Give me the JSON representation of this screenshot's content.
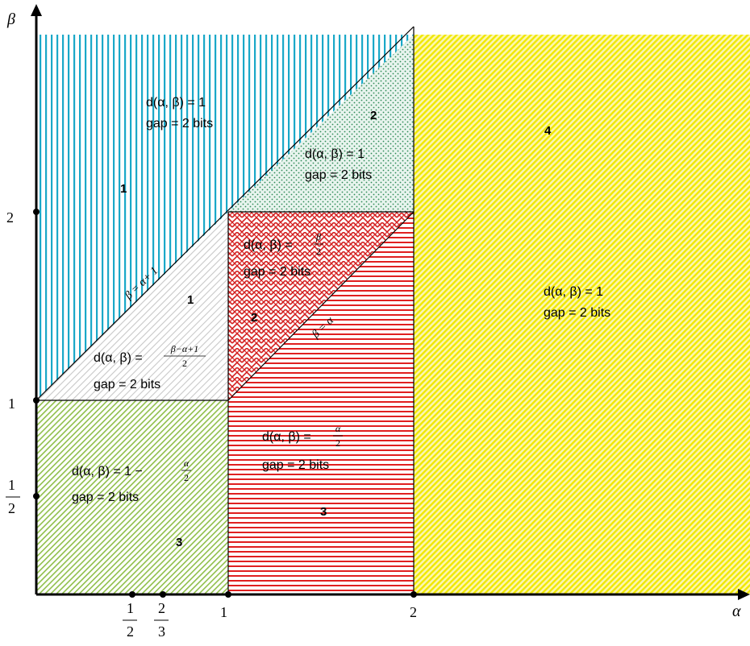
{
  "axes": {
    "x_label": "α",
    "y_label": "β",
    "x_ticks": [
      {
        "value": 0.5,
        "num": "1",
        "den": "2"
      },
      {
        "value": 0.6667,
        "num": "2",
        "den": "3"
      },
      {
        "value": 1,
        "label": "1"
      },
      {
        "value": 2,
        "label": "2"
      }
    ],
    "y_ticks": [
      {
        "value": 0.5,
        "num": "1",
        "den": "2"
      },
      {
        "value": 1,
        "label": "1"
      },
      {
        "value": 2,
        "label": "2"
      }
    ]
  },
  "lines": {
    "upper": "β = α+ 1",
    "lower": "β = α"
  },
  "regions": {
    "top_left": {
      "id": "1",
      "eq": "d(α, β) = 1",
      "gap": "gap = 2 bits",
      "color": "#1aa8c8"
    },
    "top_mid": {
      "id": "2",
      "eq": "d(α, β) = 1",
      "gap": "gap = 2 bits",
      "color": "#2e8b57"
    },
    "mid_left": {
      "id": "1",
      "eq_prefix": "d(α, β) = ",
      "frac_num": "β−α+1",
      "frac_den": "2",
      "gap": "gap = 2 bits",
      "color": "#b0b0b0"
    },
    "mid_center": {
      "id": "2",
      "eq_prefix": "d(α, β) = ",
      "frac_num": "β",
      "frac_den": "2",
      "gap": "gap = 2 bits",
      "color": "#d42020"
    },
    "bottom_left": {
      "id": "3",
      "eq_prefix": "d(α, β) = 1 − ",
      "frac_num": "α",
      "frac_den": "2",
      "gap": "gap = 2 bits",
      "color": "#7fb23a"
    },
    "bottom_center": {
      "id": "3",
      "eq_prefix": "d(α, β) = ",
      "frac_num": "α",
      "frac_den": "2",
      "gap": "gap = 2 bits",
      "color": "#e02020"
    },
    "right": {
      "id": "4",
      "eq": "d(α, β) = 1",
      "gap": "gap = 2 bits",
      "color": "#f0e800"
    }
  }
}
